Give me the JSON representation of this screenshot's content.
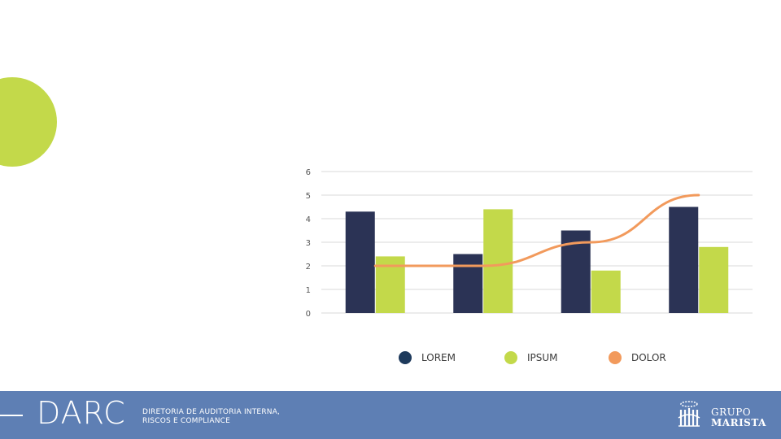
{
  "colors": {
    "accent_green": "#c3d94a",
    "navy": "#2b3355",
    "orange": "#f29a5c",
    "footer_blue": "#5e7fb4",
    "legend_lorem": "#1e3a5c"
  },
  "chart_data": {
    "type": "bar",
    "categories": [
      "",
      "",
      "",
      ""
    ],
    "series": [
      {
        "name": "LOREM",
        "type": "bar",
        "values": [
          4.3,
          2.5,
          3.5,
          4.5
        ]
      },
      {
        "name": "IPSUM",
        "type": "bar",
        "values": [
          2.4,
          4.4,
          1.8,
          2.8
        ]
      },
      {
        "name": "DOLOR",
        "type": "line",
        "values": [
          2,
          2,
          3,
          5
        ]
      }
    ],
    "ylim": [
      0,
      6
    ],
    "yticks": [
      "0",
      "1",
      "2",
      "3",
      "4",
      "5",
      "6"
    ],
    "grid": true,
    "legend_position": "bottom",
    "title": "",
    "xlabel": "",
    "ylabel": ""
  },
  "legend": [
    {
      "label": "LOREM"
    },
    {
      "label": "IPSUM"
    },
    {
      "label": "DOLOR"
    }
  ],
  "footer": {
    "brand": "DARC",
    "subtitle_line1": "DIRETORIA DE AUDITORIA INTERNA,",
    "subtitle_line2": "RISCOS E COMPLIANCE",
    "logo_line1": "GRUPO",
    "logo_line2": "MARISTA",
    "logo_icon": "marista-logo-icon"
  }
}
